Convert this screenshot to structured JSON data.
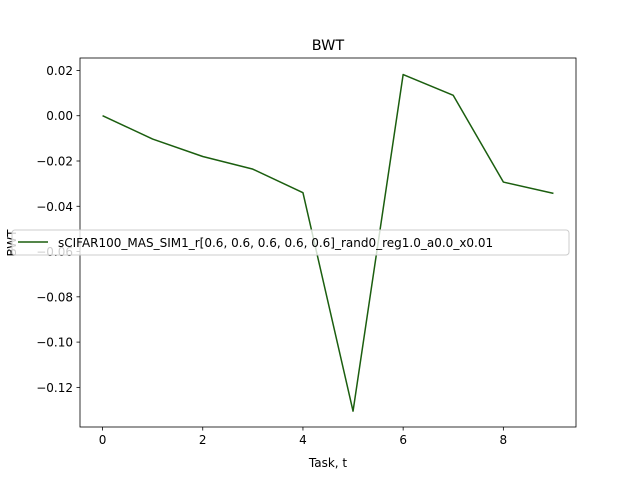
{
  "chart_data": {
    "type": "line",
    "title": "BWT",
    "xlabel": "Task, t",
    "ylabel": "BWT",
    "xlim": [
      -0.45,
      9.45
    ],
    "ylim": [
      -0.1375,
      0.0255
    ],
    "x_ticks": [
      0,
      2,
      4,
      6,
      8
    ],
    "x_tick_labels": [
      "0",
      "2",
      "4",
      "6",
      "8"
    ],
    "y_ticks": [
      0.02,
      0.0,
      -0.02,
      -0.04,
      -0.06,
      -0.08,
      -0.1,
      -0.12
    ],
    "y_tick_labels": [
      "0.02",
      "0.00",
      "−0.02",
      "−0.04",
      "−0.06",
      "−0.08",
      "−0.10",
      "−0.12"
    ],
    "grid": false,
    "legend_position": "center-left",
    "series": [
      {
        "name": "sCIFAR100_MAS_SIM1_r[0.6, 0.6, 0.6, 0.6, 0.6]_rand0_reg1.0_a0.0_x0.01",
        "color": "#1b5e0f",
        "x": [
          0,
          1,
          2,
          3,
          4,
          5,
          6,
          7,
          8,
          9
        ],
        "y": [
          0.0,
          -0.0103,
          -0.018,
          -0.0236,
          -0.034,
          -0.1305,
          0.0182,
          0.009,
          -0.0293,
          -0.0343
        ]
      }
    ]
  }
}
